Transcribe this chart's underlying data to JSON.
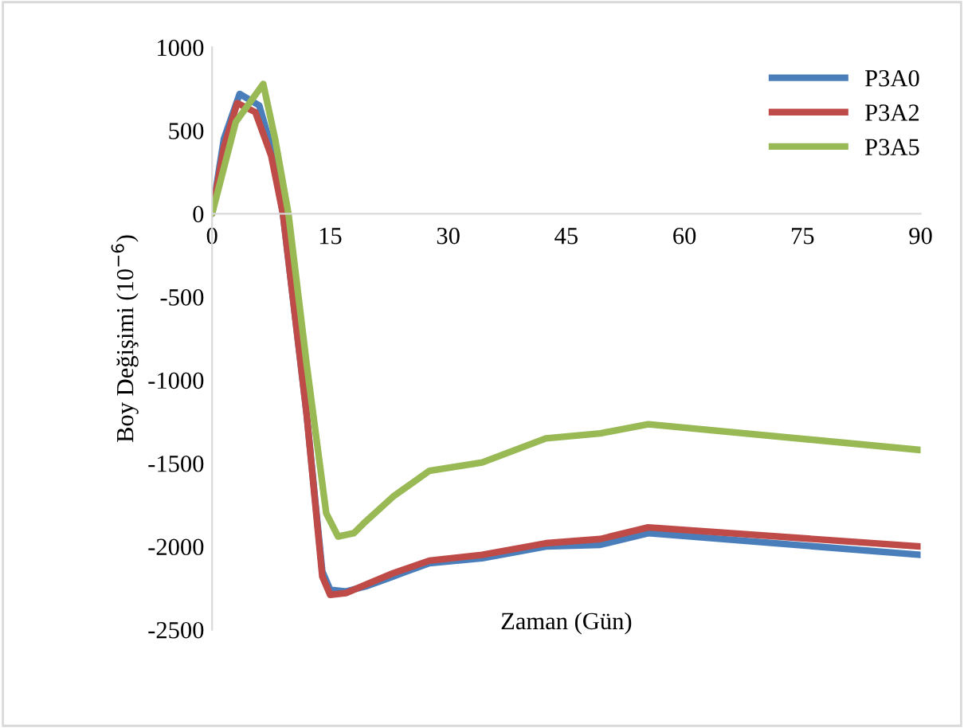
{
  "chart_data": {
    "type": "line",
    "xlabel": "Zaman (Gün)",
    "ylabel": "Boy Değişimi (10$^{−6}$)",
    "xlim": [
      0,
      90
    ],
    "xticks": [
      0,
      15,
      30,
      45,
      60,
      75,
      90
    ],
    "ylim": [
      -2500,
      1000
    ],
    "yticks": [
      -2500,
      -2000,
      -1500,
      -1000,
      -500,
      0,
      500,
      1000
    ],
    "grid": false,
    "legend": "top right",
    "marker": "none",
    "line_style": "solid",
    "series": [
      {
        "name": "P3A0",
        "color": "#4a7ebb",
        "x": [
          0,
          1.5,
          3.5,
          6,
          7.5,
          9,
          12,
          14,
          15,
          17,
          19.5,
          23,
          27.6,
          34.3,
          42.4,
          49.3,
          55.4,
          90
        ],
        "values": [
          0,
          450,
          720,
          650,
          400,
          0,
          -1200,
          -2150,
          -2260,
          -2270,
          -2240,
          -2180,
          -2100,
          -2070,
          -2000,
          -1990,
          -1920,
          -2050
        ]
      },
      {
        "name": "P3A2",
        "color": "#be4b48",
        "x": [
          0,
          1.5,
          3.2,
          5.5,
          7.5,
          9,
          12,
          14,
          15,
          17,
          19.5,
          23,
          27.6,
          34.3,
          42.4,
          49.3,
          55.4,
          90
        ],
        "values": [
          0,
          400,
          665,
          610,
          350,
          0,
          -1200,
          -2180,
          -2290,
          -2280,
          -2230,
          -2160,
          -2085,
          -2050,
          -1980,
          -1955,
          -1885,
          -2000
        ]
      },
      {
        "name": "P3A5",
        "color": "#98b954",
        "x": [
          0,
          3,
          6.5,
          8,
          9.7,
          12,
          14.5,
          16,
          18,
          19.5,
          23,
          27.6,
          34.3,
          42.4,
          49.3,
          55.4,
          90
        ],
        "values": [
          0,
          550,
          780,
          450,
          0,
          -900,
          -1800,
          -1940,
          -1920,
          -1850,
          -1700,
          -1545,
          -1495,
          -1350,
          -1320,
          -1265,
          -1420
        ]
      }
    ]
  }
}
